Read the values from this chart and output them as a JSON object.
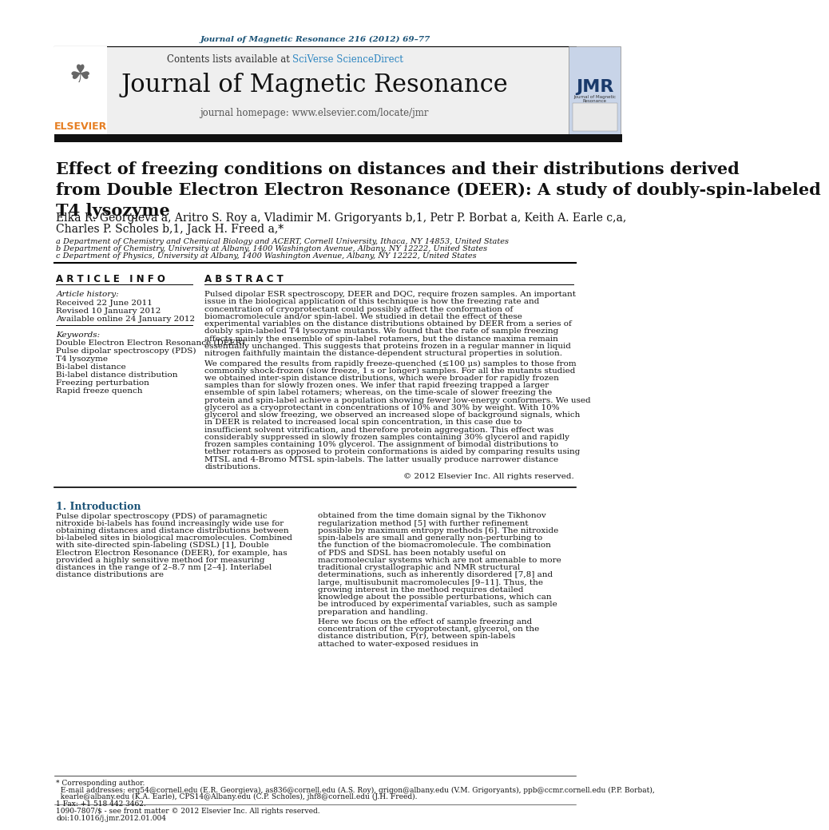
{
  "page_bg": "#ffffff",
  "header_journal_ref": "Journal of Magnetic Resonance 216 (2012) 69–77",
  "header_ref_color": "#1a5276",
  "contents_text": "Contents lists available at ",
  "sciverse_text": "SciVerse ScienceDirect",
  "sciverse_color": "#2e86c1",
  "journal_name": "Journal of Magnetic Resonance",
  "homepage_text": "journal homepage: www.elsevier.com/locate/jmr",
  "elsevier_color": "#e67e22",
  "elsevier_text": "ELSEVIER",
  "article_title": "Effect of freezing conditions on distances and their distributions derived\nfrom Double Electron Electron Resonance (DEER): A study of doubly-spin-labeled\nT4 lysozyme",
  "author_line1": "Elka R. Georgieva a, Aritro S. Roy a, Vladimir M. Grigoryants b,1, Petr P. Borbat a, Keith A. Earle c,a,",
  "author_line2": "Charles P. Scholes b,1, Jack H. Freed a,*",
  "affil_a": "a Department of Chemistry and Chemical Biology and ACERT, Cornell University, Ithaca, NY 14853, United States",
  "affil_b": "b Department of Chemistry, University at Albany, 1400 Washington Avenue, Albany, NY 12222, United States",
  "affil_c": "c Department of Physics, University at Albany, 1400 Washington Avenue, Albany, NY 12222, United States",
  "article_info_header": "A R T I C L E   I N F O",
  "abstract_header": "A B S T R A C T",
  "article_history_label": "Article history:",
  "received": "Received 22 June 2011",
  "revised": "Revised 10 January 2012",
  "available": "Available online 24 January 2012",
  "keywords_label": "Keywords:",
  "keywords": [
    "Double Electron Electron Resonance (DEER)",
    "Pulse dipolar spectroscopy (PDS)",
    "T4 lysozyme",
    "Bi-label distance",
    "Bi-label distance distribution",
    "Freezing perturbation",
    "Rapid freeze quench"
  ],
  "abstract_para1": "Pulsed dipolar ESR spectroscopy, DEER and DQC, require frozen samples. An important issue in the biological application of this technique is how the freezing rate and concentration of cryoprotectant could possibly affect the conformation of biomacromolecule and/or spin-label. We studied in detail the effect of these experimental variables on the distance distributions obtained by DEER from a series of doubly spin-labeled T4 lysozyme mutants. We found that the rate of sample freezing affects mainly the ensemble of spin-label rotamers, but the distance maxima remain essentially unchanged. This suggests that proteins frozen in a regular manner in liquid nitrogen faithfully maintain the distance-dependent structural properties in solution.",
  "abstract_para2": "We compared the results from rapidly freeze-quenched (≤100 μs) samples to those from commonly shock-frozen (slow freeze, 1 s or longer) samples. For all the mutants studied we obtained inter-spin distance distributions, which were broader for rapidly frozen samples than for slowly frozen ones. We infer that rapid freezing trapped a larger ensemble of spin label rotamers; whereas, on the time-scale of slower freezing the protein and spin-label achieve a population showing fewer low-energy conformers. We used glycerol as a cryoprotectant in concentrations of 10% and 30% by weight. With 10% glycerol and slow freezing, we observed an increased slope of background signals, which in DEER is related to increased local spin concentration, in this case due to insufficient solvent vitrification, and therefore protein aggregation. This effect was considerably suppressed in slowly frozen samples containing 30% glycerol and rapidly frozen samples containing 10% glycerol. The assignment of bimodal distributions to tether rotamers as opposed to protein conformations is aided by comparing results using MTSL and 4-Bromo MTSL spin-labels. The latter usually produce narrower distance distributions.",
  "abstract_copyright": "© 2012 Elsevier Inc. All rights reserved.",
  "intro_header": "1. Introduction",
  "intro_text_col1": "Pulse dipolar spectroscopy (PDS) of paramagnetic nitroxide bi-labels has found increasingly wide use for obtaining distances and distance distributions between bi-labeled sites in biological macromolecules. Combined with site-directed spin-labeling (SDSL) [1], Double Electron Electron Resonance (DEER), for example, has provided a highly sensitive method for measuring distances in the range of 2–8.7 nm [2–4]. Interlabel distance distributions are",
  "intro_text_col2": "obtained from the time domain signal by the Tikhonov regularization method [5] with further refinement possible by maximum entropy methods [6]. The nitroxide spin-labels are small and generally non-perturbing to the function of the biomacromolecule. The combination of PDS and SDSL has been notably useful on macromolecular systems which are not amenable to more traditional crystallographic and NMR structural determinations, such as inherently disordered [7,8] and large, multisubunit macromolecules [9–11]. Thus, the growing interest in the method requires detailed knowledge about the possible perturbations, which can be introduced by experimental variables, such as sample preparation and handling.",
  "intro_text_col2b": "   Here we focus on the effect of sample freezing and concentration of the cryoprotectant, glycerol, on the distance distribution, P(r), between spin-labels attached to water-exposed residues in",
  "footer_line1": "* Corresponding author.",
  "footer_line2": "  E-mail addresses: erg54@cornell.edu (E.R. Georgieva), as836@cornell.edu (A.S. Roy), grigon@albany.edu (V.M. Grigoryants), ppb@ccmr.cornell.edu (P.P. Borbat),",
  "footer_line3": "  kearle@albany.edu (K.A. Earle), CPS14@Albany.edu (C.P. Scholes), jhf8@cornell.edu (J.H. Freed).",
  "footer_line4": "1 Fax: +1 518 442 3462.",
  "issn_line1": "1090-7807/$ - see front matter © 2012 Elsevier Inc. All rights reserved.",
  "issn_line2": "doi:10.1016/j.jmr.2012.01.004"
}
